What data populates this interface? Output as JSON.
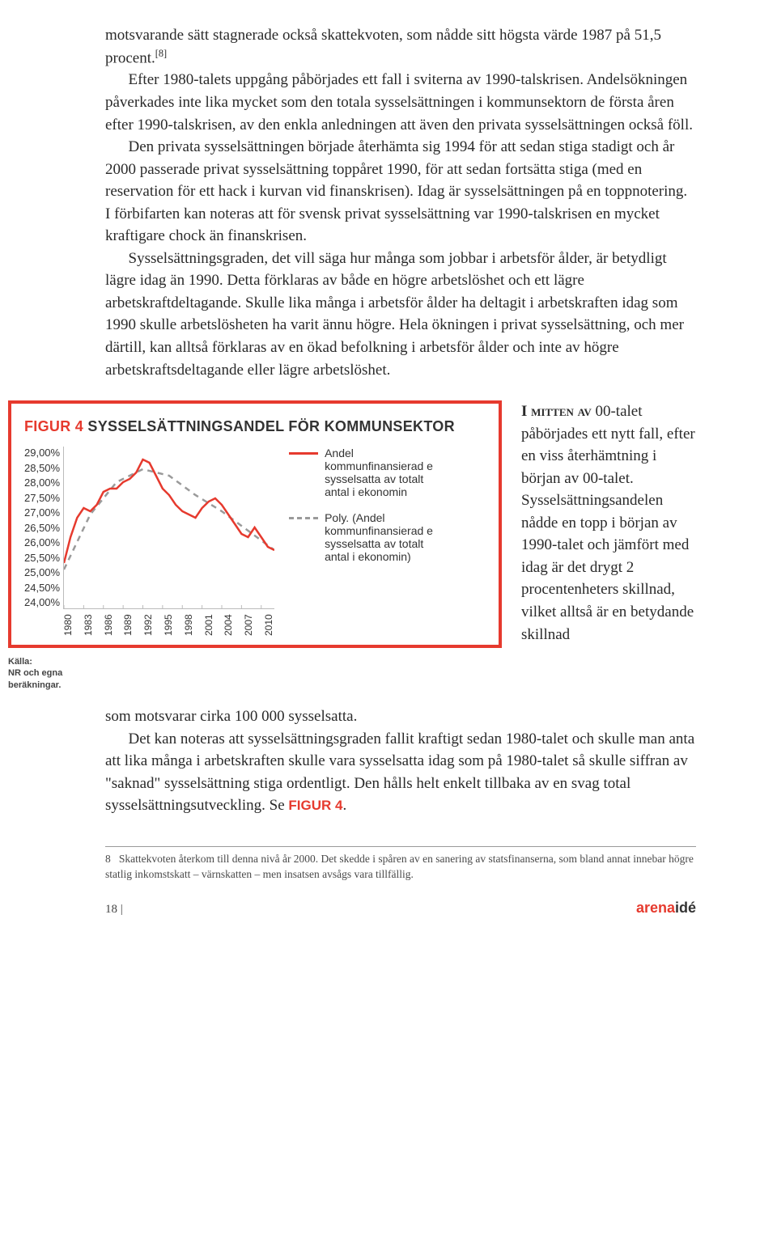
{
  "para1_a": "motsvarande sätt stagnerade också skattekvoten, som nådde sitt högsta värde 1987 på 51,5 procent.",
  "para1_fn": "[8]",
  "para1_b": "Efter 1980-talets uppgång påbörjades ett fall i sviterna av 1990-talskrisen. Andelsökningen påverkades inte lika mycket som den totala sysselsättningen i kommunsektorn de första åren efter 1990-talskrisen, av den enkla anledningen att även den privata sysselsättningen också föll.",
  "para2": "Den privata sysselsättningen började återhämta sig 1994 för att sedan stiga stadigt och år 2000 passerade privat sysselsättning toppåret 1990, för att sedan fortsätta stiga (med en reservation för ett hack i kurvan vid finanskrisen). Idag är sysselsättningen på en toppnotering. I förbifarten kan noteras att för svensk privat sysselsättning var 1990-talskrisen en mycket kraftigare chock än finanskrisen.",
  "para3": "Sysselsättningsgraden, det vill säga hur många som jobbar i arbetsför ålder, är betydligt lägre idag än 1990. Detta förklaras av både en högre arbetslöshet och ett lägre arbetskraftdeltagande. Skulle lika många i arbetsför ålder ha deltagit i arbetskraften idag som 1990 skulle arbetslösheten ha varit ännu högre. Hela ökningen i privat sysselsättning, och mer därtill, kan alltså förklaras av en ökad befolkning i arbetsför ålder och inte av högre arbetskraftsdeltagande eller lägre arbetslöshet.",
  "figure": {
    "number": "FIGUR 4",
    "title": "SYSSELSÄTTNINGSANDEL FÖR KOMMUNSEKTOR",
    "y_ticks": [
      "29,00%",
      "28,50%",
      "28,00%",
      "27,50%",
      "27,00%",
      "26,50%",
      "26,00%",
      "25,50%",
      "25,00%",
      "24,50%",
      "24,00%"
    ],
    "x_ticks": [
      "1980",
      "1983",
      "1986",
      "1989",
      "1992",
      "1995",
      "1998",
      "2001",
      "2004",
      "2007",
      "2010"
    ],
    "series_solid": {
      "label": "Andel kommunfinansierad e sysselsatta av totalt antal i ekonomin",
      "color": "#e63a2e",
      "y_min": 24.0,
      "y_max": 29.0,
      "points": [
        [
          1980,
          25.4
        ],
        [
          1981,
          26.2
        ],
        [
          1982,
          26.8
        ],
        [
          1983,
          27.1
        ],
        [
          1984,
          27.0
        ],
        [
          1985,
          27.2
        ],
        [
          1986,
          27.6
        ],
        [
          1987,
          27.7
        ],
        [
          1988,
          27.7
        ],
        [
          1989,
          27.9
        ],
        [
          1990,
          28.0
        ],
        [
          1991,
          28.2
        ],
        [
          1992,
          28.6
        ],
        [
          1993,
          28.5
        ],
        [
          1994,
          28.1
        ],
        [
          1995,
          27.7
        ],
        [
          1996,
          27.5
        ],
        [
          1997,
          27.2
        ],
        [
          1998,
          27.0
        ],
        [
          1999,
          26.9
        ],
        [
          2000,
          26.8
        ],
        [
          2001,
          27.1
        ],
        [
          2002,
          27.3
        ],
        [
          2003,
          27.4
        ],
        [
          2004,
          27.2
        ],
        [
          2005,
          26.9
        ],
        [
          2006,
          26.6
        ],
        [
          2007,
          26.3
        ],
        [
          2008,
          26.2
        ],
        [
          2009,
          26.5
        ],
        [
          2010,
          26.2
        ],
        [
          2011,
          25.9
        ],
        [
          2012,
          25.8
        ]
      ]
    },
    "series_dash": {
      "label": "Poly. (Andel kommunfinansierad e sysselsatta av totalt antal i ekonomin)",
      "color": "#9a9a9a",
      "points": [
        [
          1980,
          25.2
        ],
        [
          1984,
          26.9
        ],
        [
          1988,
          27.9
        ],
        [
          1992,
          28.3
        ],
        [
          1996,
          28.1
        ],
        [
          2000,
          27.5
        ],
        [
          2004,
          27.0
        ],
        [
          2008,
          26.4
        ],
        [
          2012,
          25.8
        ]
      ]
    },
    "kalla_label": "Källa:",
    "kalla_text": "NR och egna beräkningar."
  },
  "side_heading": "I mitten av",
  "side_text": " 00-talet påbörjades ett nytt fall, efter en viss återhämtning i början av 00-talet. Sysselsättningsandelen nådde en topp i början av 1990-talet och jämfört med idag är det drygt 2 procentenheters skillnad, vilket alltså är en betydande skillnad ",
  "after1": "som motsvarar cirka 100 000 sysselsatta.",
  "after2_a": "Det kan noteras att sysselsättningsgraden fallit kraftigt sedan 1980-talet och skulle man anta att lika många i arbetskraften skulle vara sysselsatta idag som på 1980-talet så skulle siffran av \"saknad\" sysselsättning stiga ordentligt. Den hålls helt enkelt tillbaka av en svag total sysselsättningsutveckling. Se ",
  "after2_figref": "FIGUR 4",
  "after2_b": ".",
  "fn_num": "8",
  "fn_text": "Skattekvoten återkom till denna nivå år 2000. Det skedde i spåren av en sanering av statsfinanserna, som bland annat innebar högre statlig inkomstskatt – värnskatten – men insatsen avsågs vara tillfällig.",
  "page_number": "18",
  "brand_a": "arena",
  "brand_b": "idé"
}
